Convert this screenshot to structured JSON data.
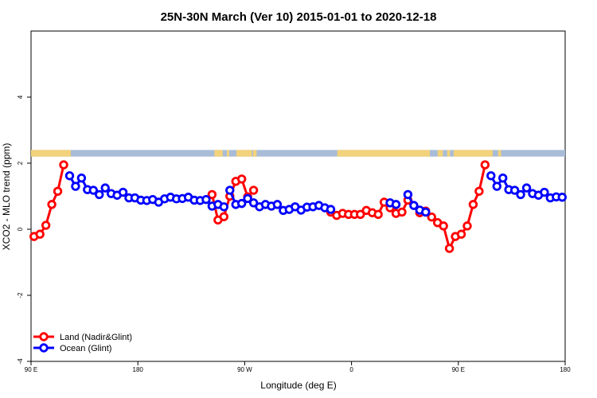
{
  "chart_data": {
    "type": "line",
    "title": "25N-30N March (Ver 10)   2015-01-01 to 2020-12-18",
    "xlabel": "Longitude (deg E)",
    "ylabel": "XCO2 - MLO trend (ppm)",
    "xlim": [
      90,
      540
    ],
    "ylim": [
      -4,
      6
    ],
    "x_ticks": [
      {
        "value": 90,
        "label": "90 E"
      },
      {
        "value": 180,
        "label": "180"
      },
      {
        "value": 270,
        "label": "90 W"
      },
      {
        "value": 360,
        "label": "0"
      },
      {
        "value": 450,
        "label": "90 E"
      },
      {
        "value": 540,
        "label": "180"
      }
    ],
    "y_ticks": [
      {
        "value": -4,
        "label": "-4"
      },
      {
        "value": -2,
        "label": "-2"
      },
      {
        "value": 0,
        "label": "0"
      },
      {
        "value": 2,
        "label": "2"
      },
      {
        "value": 4,
        "label": "4"
      }
    ],
    "colors": {
      "land": "#ff0000",
      "ocean": "#0000ff",
      "land_band": "#f2d27a",
      "ocean_band": "#a8bcd8"
    },
    "surface_band": {
      "y_range": [
        2.2,
        2.4
      ],
      "land_segments": [
        [
          90,
          123.5
        ],
        [
          244.5,
          251.5
        ],
        [
          255,
          257
        ],
        [
          263,
          276
        ],
        [
          277,
          280
        ],
        [
          348,
          426
        ],
        [
          432.5,
          437
        ],
        [
          440.5,
          443
        ],
        [
          446,
          479
        ],
        [
          483.5,
          486
        ]
      ]
    },
    "legend": {
      "position": "bottom-left",
      "entries": [
        "Land (Nadir&Glint)",
        "Ocean (Glint)"
      ]
    },
    "series": [
      {
        "name": "Land (Nadir&Glint)",
        "style": "land",
        "segments": [
          [
            [
              92.5,
              -0.22
            ],
            [
              97.5,
              -0.15
            ],
            [
              102.5,
              0.12
            ],
            [
              107.5,
              0.75
            ],
            [
              112.5,
              1.15
            ],
            [
              117.5,
              1.95
            ]
          ],
          [
            [
              242.5,
              1.05
            ],
            [
              247.5,
              0.28
            ],
            [
              252.5,
              0.38
            ],
            [
              257.5,
              1.0
            ],
            [
              262.5,
              1.45
            ],
            [
              267.5,
              1.52
            ],
            [
              272.5,
              0.98
            ]
          ],
          [
            [
              277.5,
              1.18
            ]
          ],
          [
            [
              342.5,
              0.52
            ],
            [
              347.5,
              0.42
            ],
            [
              352.5,
              0.48
            ],
            [
              357.5,
              0.45
            ],
            [
              362.5,
              0.45
            ],
            [
              367.5,
              0.45
            ],
            [
              372.5,
              0.57
            ],
            [
              377.5,
              0.5
            ],
            [
              382.5,
              0.45
            ],
            [
              387.5,
              0.82
            ],
            [
              392.5,
              0.65
            ],
            [
              397.5,
              0.48
            ],
            [
              402.5,
              0.52
            ],
            [
              407.5,
              0.88
            ]
          ],
          [
            [
              417.5,
              0.5
            ],
            [
              422.5,
              0.55
            ],
            [
              427.5,
              0.37
            ],
            [
              432.5,
              0.2
            ],
            [
              437.5,
              0.1
            ],
            [
              442.5,
              -0.58
            ],
            [
              447.5,
              -0.22
            ],
            [
              452.5,
              -0.15
            ],
            [
              457.5,
              0.1
            ],
            [
              462.5,
              0.75
            ],
            [
              467.5,
              1.15
            ],
            [
              472.5,
              1.95
            ]
          ]
        ]
      },
      {
        "name": "Ocean (Glint)",
        "style": "ocean",
        "segments": [
          [
            [
              122.5,
              1.62
            ],
            [
              127.5,
              1.3
            ],
            [
              132.5,
              1.55
            ],
            [
              137.5,
              1.2
            ],
            [
              142.5,
              1.18
            ],
            [
              147.5,
              1.05
            ],
            [
              152.5,
              1.25
            ],
            [
              157.5,
              1.08
            ],
            [
              162.5,
              1.03
            ],
            [
              167.5,
              1.12
            ],
            [
              172.5,
              0.95
            ],
            [
              177.5,
              0.95
            ],
            [
              182.5,
              0.88
            ],
            [
              187.5,
              0.87
            ],
            [
              192.5,
              0.9
            ],
            [
              197.5,
              0.82
            ],
            [
              202.5,
              0.92
            ],
            [
              207.5,
              0.97
            ],
            [
              212.5,
              0.92
            ],
            [
              217.5,
              0.93
            ],
            [
              222.5,
              0.97
            ],
            [
              227.5,
              0.88
            ],
            [
              232.5,
              0.87
            ],
            [
              237.5,
              0.9
            ],
            [
              242.5,
              0.7
            ],
            [
              247.5,
              0.75
            ],
            [
              252.5,
              0.68
            ]
          ],
          [
            [
              257.5,
              1.18
            ],
            [
              262.5,
              0.75
            ],
            [
              267.5,
              0.78
            ],
            [
              272.5,
              0.93
            ],
            [
              277.5,
              0.8
            ],
            [
              282.5,
              0.68
            ],
            [
              287.5,
              0.75
            ],
            [
              292.5,
              0.7
            ],
            [
              297.5,
              0.75
            ],
            [
              302.5,
              0.57
            ],
            [
              307.5,
              0.6
            ],
            [
              312.5,
              0.68
            ],
            [
              317.5,
              0.58
            ],
            [
              322.5,
              0.67
            ],
            [
              327.5,
              0.68
            ],
            [
              332.5,
              0.72
            ],
            [
              337.5,
              0.65
            ],
            [
              342.5,
              0.6
            ]
          ],
          [
            [
              392.5,
              0.8
            ],
            [
              397.5,
              0.75
            ]
          ],
          [
            [
              407.5,
              1.05
            ],
            [
              412.5,
              0.72
            ],
            [
              417.5,
              0.58
            ],
            [
              422.5,
              0.52
            ]
          ],
          [
            [
              477.5,
              1.62
            ],
            [
              482.5,
              1.3
            ],
            [
              487.5,
              1.55
            ],
            [
              492.5,
              1.2
            ],
            [
              497.5,
              1.18
            ],
            [
              502.5,
              1.05
            ],
            [
              507.5,
              1.25
            ],
            [
              512.5,
              1.08
            ],
            [
              517.5,
              1.03
            ],
            [
              522.5,
              1.12
            ],
            [
              527.5,
              0.95
            ],
            [
              532.5,
              0.98
            ],
            [
              537.5,
              0.97
            ]
          ]
        ]
      }
    ]
  }
}
